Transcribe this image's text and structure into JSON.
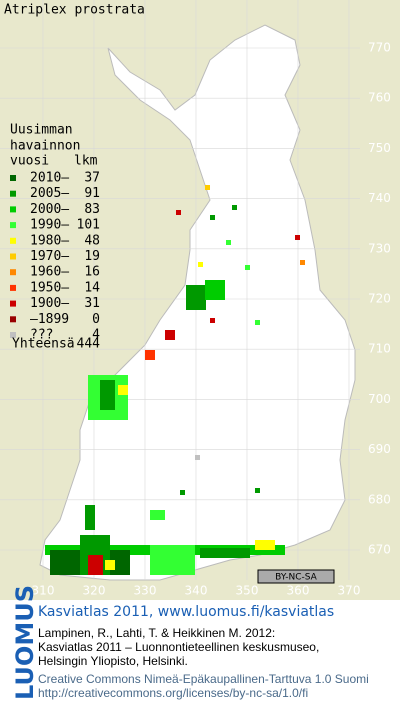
{
  "title": "Atriplex prostrata",
  "legend": {
    "heading": [
      "Uusimman",
      "havainnon"
    ],
    "col_year": "vuosi",
    "col_count": "lkm",
    "rows": [
      {
        "label": "2010–",
        "count": 37,
        "color": "#006600"
      },
      {
        "label": "2005–",
        "count": 91,
        "color": "#009900"
      },
      {
        "label": "2000–",
        "count": 83,
        "color": "#00cc00"
      },
      {
        "label": "1990–",
        "count": 101,
        "color": "#33ff33"
      },
      {
        "label": "1980–",
        "count": 48,
        "color": "#ffff00"
      },
      {
        "label": "1970–",
        "count": 19,
        "color": "#ffcc00"
      },
      {
        "label": "1960–",
        "count": 16,
        "color": "#ff8800"
      },
      {
        "label": "1950–",
        "count": 14,
        "color": "#ff3300"
      },
      {
        "label": "1900–",
        "count": 31,
        "color": "#cc0000"
      },
      {
        "label": "–1899",
        "count": 0,
        "color": "#990000"
      },
      {
        "label": "???",
        "count": 4,
        "color": "#c0c0c0"
      }
    ],
    "total_label": "Yhteensä",
    "total": 444
  },
  "map": {
    "y_labels": [
      770,
      760,
      750,
      740,
      730,
      720,
      710,
      700,
      690,
      680,
      670
    ],
    "x_labels": [
      310,
      320,
      330,
      340,
      350,
      360,
      370
    ]
  },
  "license_badge": "BY-NC-SA",
  "footer": {
    "logo": "LUOMUS",
    "heading": "Kasviatlas 2011, www.luomus.fi/kasviatlas",
    "citation": [
      "Lampinen, R., Lahti, T. & Heikkinen M. 2012:",
      "Kasviatlas 2011 – Luonnontieteellinen keskusmuseo,",
      "Helsingin Yliopisto, Helsinki."
    ],
    "license": [
      "Creative Commons Nimeä-Epäkaupallinen-Tarttuva 1.0 Suomi",
      "http://creativecommons.org/licenses/by-nc-sa/1.0/fi"
    ]
  }
}
